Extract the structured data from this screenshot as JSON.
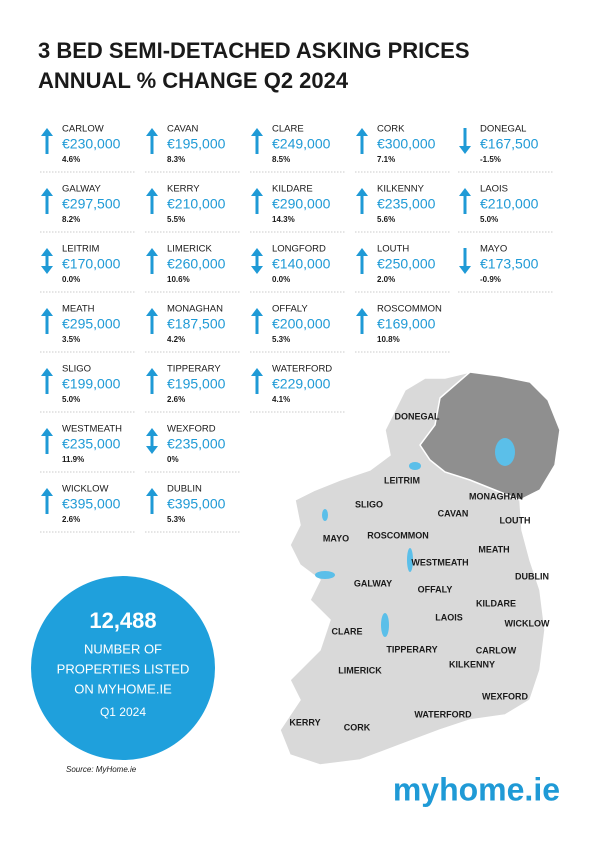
{
  "header": {
    "title": [
      "3 BED SEMI-DETACHED ASKING PRICES",
      "ANNUAL % CHANGE Q2 2024"
    ]
  },
  "rows": [
    [
      {
        "name": "CARLOW",
        "price": "€230,000",
        "change": "4.6%",
        "direction": "up"
      },
      {
        "name": "CAVAN",
        "price": "€195,000",
        "change": "8.3%",
        "direction": "up"
      },
      {
        "name": "CLARE",
        "price": "€249,000",
        "change": "8.5%",
        "direction": "up"
      },
      {
        "name": "CORK",
        "price": "€300,000",
        "change": "7.1%",
        "direction": "up"
      },
      {
        "name": "DONEGAL",
        "price": "€167,500",
        "change": "-1.5%",
        "direction": "down"
      }
    ],
    [
      {
        "name": "GALWAY",
        "price": "€297,500",
        "change": "8.2%",
        "direction": "up"
      },
      {
        "name": "KERRY",
        "price": "€210,000",
        "change": "5.5%",
        "direction": "up"
      },
      {
        "name": "KILDARE",
        "price": "€290,000",
        "change": "14.3%",
        "direction": "up"
      },
      {
        "name": "KILKENNY",
        "price": "€235,000",
        "change": "5.6%",
        "direction": "up"
      },
      {
        "name": "LAOIS",
        "price": "€210,000",
        "change": "5.0%",
        "direction": "up"
      }
    ],
    [
      {
        "name": "LEITRIM",
        "price": "€170,000",
        "change": "0.0%",
        "direction": "flat"
      },
      {
        "name": "LIMERICK",
        "price": "€260,000",
        "change": "10.6%",
        "direction": "up"
      },
      {
        "name": "LONGFORD",
        "price": "€140,000",
        "change": "0.0%",
        "direction": "flat"
      },
      {
        "name": "LOUTH",
        "price": "€250,000",
        "change": "2.0%",
        "direction": "up"
      },
      {
        "name": "MAYO",
        "price": "€173,500",
        "change": "-0.9%",
        "direction": "down"
      }
    ],
    [
      {
        "name": "MEATH",
        "price": "€295,000",
        "change": "3.5%",
        "direction": "up"
      },
      {
        "name": "MONAGHAN",
        "price": "€187,500",
        "change": "4.2%",
        "direction": "up"
      },
      {
        "name": "OFFALY",
        "price": "€200,000",
        "change": "5.3%",
        "direction": "up"
      },
      {
        "name": "ROSCOMMON",
        "price": "€169,000",
        "change": "10.8%",
        "direction": "up"
      }
    ],
    [
      {
        "name": "SLIGO",
        "price": "€199,000",
        "change": "5.0%",
        "direction": "up"
      },
      {
        "name": "TIPPERARY",
        "price": "€195,000",
        "change": "2.6%",
        "direction": "up"
      },
      {
        "name": "WATERFORD",
        "price": "€229,000",
        "change": "4.1%",
        "direction": "up"
      }
    ],
    [
      {
        "name": "WESTMEATH",
        "price": "€235,000",
        "change": "11.9%",
        "direction": "up"
      },
      {
        "name": "WEXFORD",
        "price": "€235,000",
        "change": "0%",
        "direction": "flat"
      }
    ],
    [
      {
        "name": "WICKLOW",
        "price": "€395,000",
        "change": "2.6%",
        "direction": "up"
      },
      {
        "name": "DUBLIN",
        "price": "€395,000",
        "change": "5.3%",
        "direction": "up"
      }
    ]
  ],
  "map": {
    "labels": [
      "DONEGAL",
      "LEITRIM",
      "MONAGHAN",
      "SLIGO",
      "CAVAN",
      "LOUTH",
      "MAYO",
      "ROSCOMMON",
      "MEATH",
      "WESTMEATH",
      "DUBLIN",
      "GALWAY",
      "OFFALY",
      "KILDARE",
      "LAOIS",
      "WICKLOW",
      "CLARE",
      "TIPPERARY",
      "CARLOW",
      "KILKENNY",
      "LIMERICK",
      "WEXFORD",
      "WATERFORD",
      "KERRY",
      "CORK"
    ]
  },
  "callout": {
    "value": "12,488",
    "lines": [
      "NUMBER OF",
      "PROPERTIES LISTED",
      "ON MYHOME.IE",
      "Q1 2024"
    ]
  },
  "footer": {
    "source": "Source: MyHome.ie",
    "logo": "myhome.ie"
  }
}
